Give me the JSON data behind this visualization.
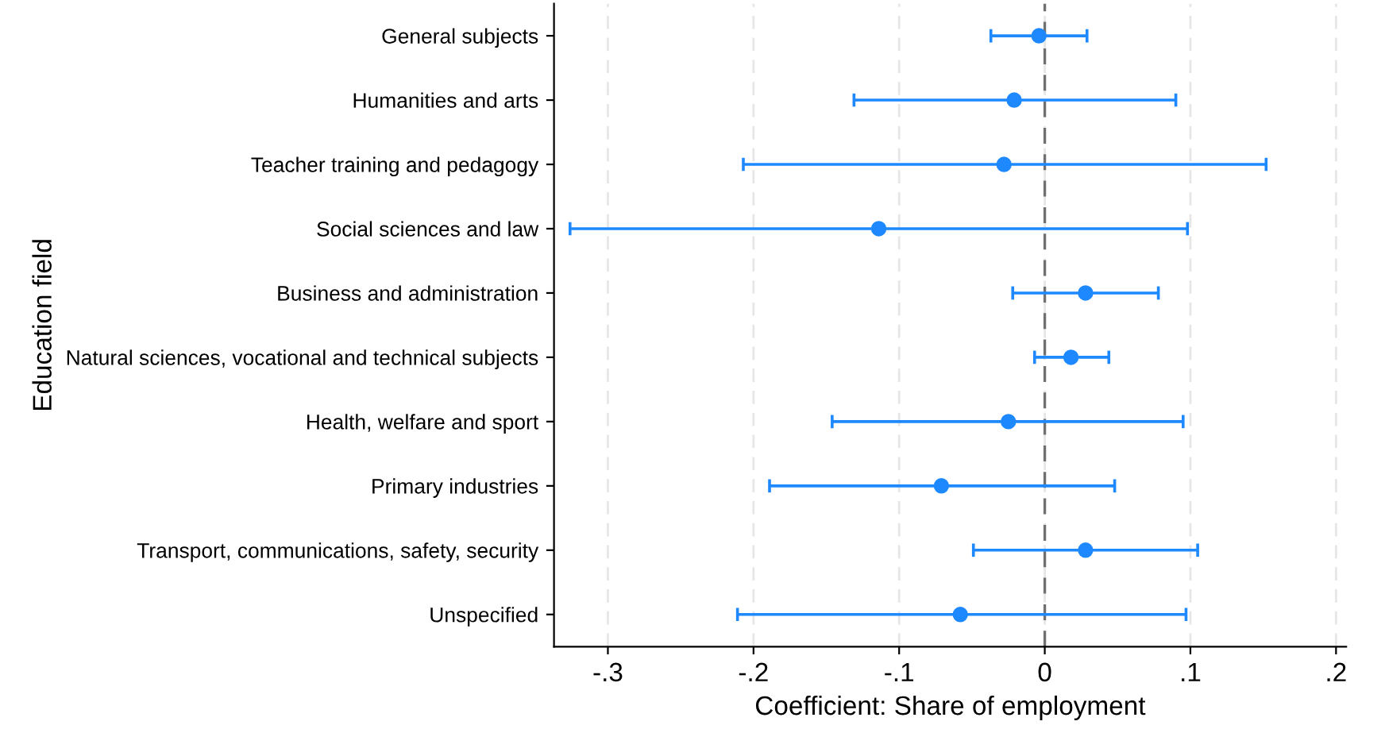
{
  "chart_data": {
    "type": "scatter",
    "orientation": "horizontal",
    "xlabel": "Coefficient: Share of employment",
    "ylabel": "Education field",
    "categories": [
      "General subjects",
      "Humanities and arts",
      "Teacher training and pedagogy",
      "Social sciences and law",
      "Business and administration",
      "Natural sciences, vocational and technical subjects",
      "Health, welfare and sport",
      "Primary industries",
      "Transport, communications, safety, security",
      "Unspecified"
    ],
    "series": [
      {
        "color": "#1e88ff",
        "values": [
          -0.004,
          -0.021,
          -0.028,
          -0.114,
          0.028,
          0.018,
          -0.025,
          -0.071,
          0.028,
          -0.058
        ],
        "errors": [
          [
            -0.037,
            0.029
          ],
          [
            -0.131,
            0.09
          ],
          [
            -0.207,
            0.152
          ],
          [
            -0.326,
            0.098
          ],
          [
            -0.022,
            0.078
          ],
          [
            -0.007,
            0.044
          ],
          [
            -0.146,
            0.095
          ],
          [
            -0.189,
            0.048
          ],
          [
            -0.049,
            0.105
          ],
          [
            -0.211,
            0.097
          ]
        ]
      }
    ],
    "xlim": [
      -0.337,
      0.207
    ],
    "xticks": [
      {
        "value": -0.3,
        "label": "-.3"
      },
      {
        "value": -0.2,
        "label": "-.2"
      },
      {
        "value": -0.1,
        "label": "-.1"
      },
      0,
      {
        "value": 0.1,
        "label": ".1"
      },
      {
        "value": 0.2,
        "label": ".2"
      }
    ],
    "ref_lines": [
      {
        "axis": "x",
        "value": 0,
        "color": "#707070",
        "line_style": "dashed"
      }
    ],
    "grid": "x",
    "marker": "circle",
    "legend": false
  }
}
